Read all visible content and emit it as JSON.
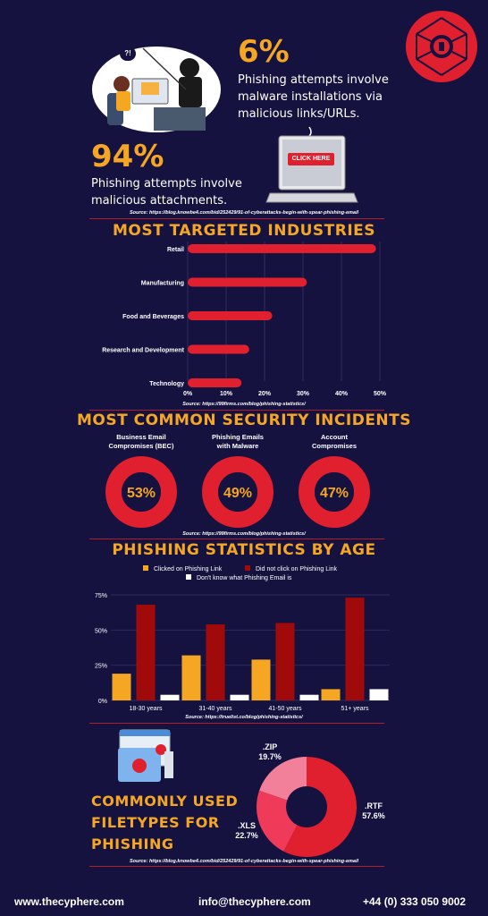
{
  "hero": {
    "stat1_value": "6%",
    "stat1_text_line1": "Phishing attempts involve",
    "stat1_text_line2": "malware installations via",
    "stat1_text_line3": "malicious links/URLs.",
    "stat2_value": "94%",
    "stat2_text_line1": "Phishing attempts involve",
    "stat2_text_line2": "malicious attachments.",
    "click_here": "CLICK HERE",
    "bubble": "?!",
    "source": "Source: https://blog.knowbe4.com/bid/252429/91-of-cyberattacks-begin-with-spear-phishing-email"
  },
  "industries": {
    "title": "MOST TARGETED INDUSTRIES",
    "source": "Source: https://99firms.com/blog/phishing-statistics/"
  },
  "incidents": {
    "title": "MOST COMMON SECURITY INCIDENTS",
    "items": [
      {
        "line1": "Business Email",
        "line2": "Compromises (BEC)",
        "pct": "53%"
      },
      {
        "line1": "Phishing Emails",
        "line2": "with Malware",
        "pct": "49%"
      },
      {
        "line1": "Account",
        "line2": "Compromises",
        "pct": "47%"
      }
    ],
    "source": "Source: https://99firms.com/blog/phishing-statistics/"
  },
  "age": {
    "title": "PHISHING STATISTICS BY AGE",
    "source": "Source: https://truelist.co/blog/phishing-statistics/"
  },
  "filetypes": {
    "title_line1": "COMMONLY USED",
    "title_line2": "FILETYPES FOR",
    "title_line3": "PHISHING",
    "source": "Source: https://blog.knowbe4.com/bid/252429/91-of-cyberattacks-begin-with-spear-phishing-email"
  },
  "footer": {
    "website": "www.thecyphere.com",
    "email": "info@thecyphere.com",
    "phone": "+44 (0) 333 050 9002"
  },
  "colors": {
    "background": "#16123f",
    "accent": "#f5a623",
    "red": "#e0202e",
    "dark_red": "#a00a0a",
    "pink": "#f2607a",
    "white": "#ffffff"
  },
  "chart_data": [
    {
      "type": "bar",
      "orientation": "horizontal",
      "title": "MOST TARGETED INDUSTRIES",
      "categories": [
        "Retail",
        "Manufacturing",
        "Food and Beverages",
        "Research and Development",
        "Technology"
      ],
      "values": [
        49,
        31,
        22,
        16,
        14
      ],
      "xticks": [
        "0%",
        "10%",
        "20%",
        "30%",
        "40%",
        "50%"
      ],
      "xlim": [
        0,
        50
      ],
      "grid": true
    },
    {
      "type": "pie",
      "subtype": "donut",
      "title": "MOST COMMON SECURITY INCIDENTS",
      "categories": [
        "Business Email Compromises (BEC)",
        "Phishing Emails with Malware",
        "Account Compromises"
      ],
      "values": [
        53,
        49,
        47
      ]
    },
    {
      "type": "bar",
      "title": "PHISHING STATISTICS BY AGE",
      "categories": [
        "18-30 years",
        "31-40 years",
        "41-50 years",
        "51+ years"
      ],
      "series": [
        {
          "name": "Clicked on Phishing Link",
          "values": [
            19,
            32,
            29,
            8
          ],
          "color": "#f5a623"
        },
        {
          "name": "Did not click on Phishing Link",
          "values": [
            68,
            54,
            55,
            73
          ],
          "color": "#a00a0a"
        },
        {
          "name": "Don't know what Phishing Email is",
          "values": [
            4,
            4,
            4,
            8
          ],
          "color": "#ffffff"
        }
      ],
      "yticks": [
        "0%",
        "25%",
        "50%",
        "75%"
      ],
      "ylim": [
        0,
        75
      ],
      "legend": "top",
      "grid": true
    },
    {
      "type": "pie",
      "subtype": "donut",
      "title": "COMMONLY USED FILETYPES FOR PHISHING",
      "categories": [
        ".RTF",
        ".XLS",
        ".ZIP"
      ],
      "values": [
        57.6,
        22.7,
        19.7
      ],
      "labels": [
        ".RTF\n57.6%",
        ".XLS\n22.7%",
        ".ZIP\n19.7%"
      ],
      "colors": [
        "#e0202e",
        "#f03a5a",
        "#f2809a"
      ]
    }
  ]
}
